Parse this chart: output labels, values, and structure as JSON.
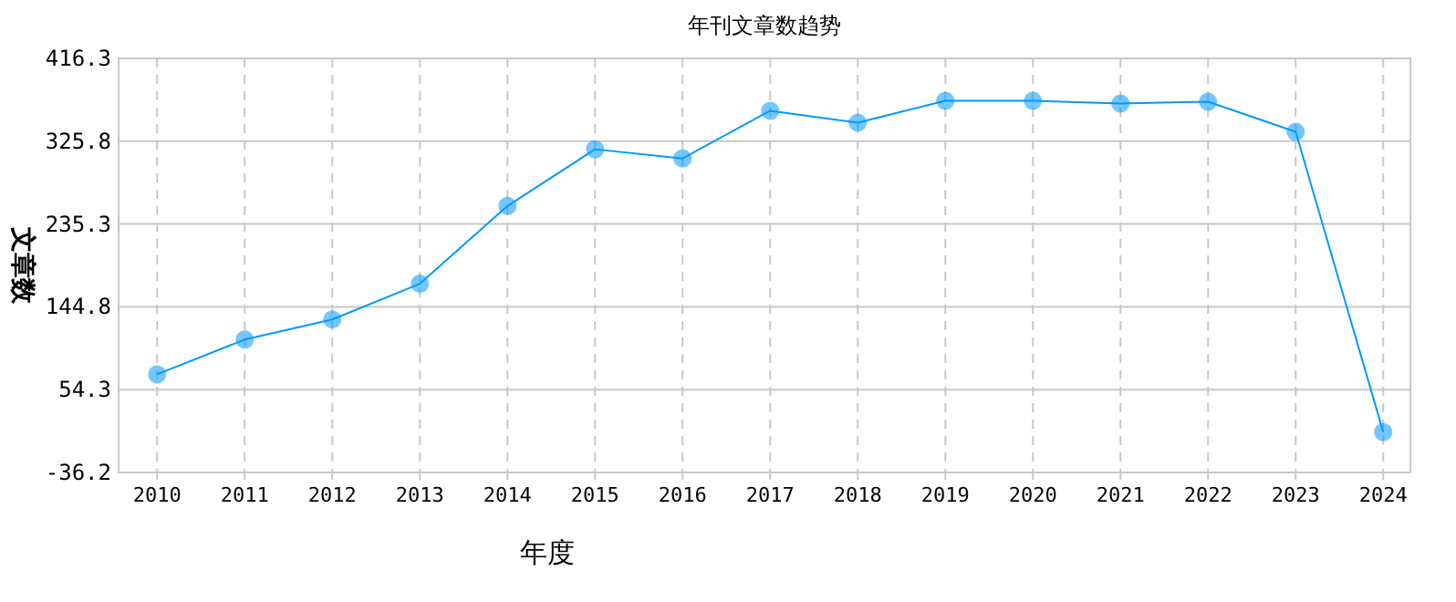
{
  "chart_data": {
    "type": "line",
    "title": "年刊文章数趋势",
    "xlabel": "年度",
    "ylabel": "文章数",
    "categories": [
      "2010",
      "2011",
      "2012",
      "2013",
      "2014",
      "2015",
      "2016",
      "2017",
      "2018",
      "2019",
      "2020",
      "2021",
      "2022",
      "2023",
      "2024"
    ],
    "series": [
      {
        "color": "#0099ff",
        "values": [
          71,
          109,
          131,
          170,
          255,
          317,
          307,
          359,
          346,
          370,
          370,
          367,
          369,
          336,
          8
        ]
      }
    ],
    "ylim": [
      -36.2,
      416.3
    ],
    "yticks": [
      -36.2,
      54.3,
      144.8,
      235.3,
      325.8,
      416.3
    ],
    "grid": true,
    "marker": "circle"
  }
}
